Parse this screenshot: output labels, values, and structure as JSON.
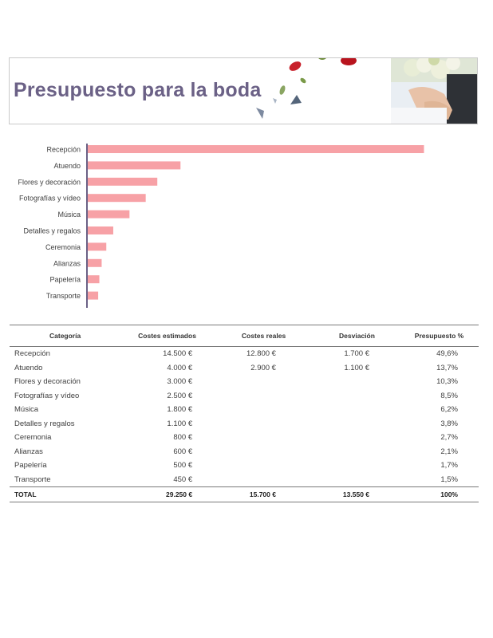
{
  "header": {
    "title": "Presupuesto para la boda"
  },
  "chart_data": {
    "type": "bar",
    "orientation": "horizontal",
    "categories": [
      "Recepción",
      "Atuendo",
      "Flores y decoración",
      "Fotografías y vídeo",
      "Música",
      "Detalles y regalos",
      "Ceremonia",
      "Alianzas",
      "Papelería",
      "Transporte"
    ],
    "values": [
      14500,
      4000,
      3000,
      2500,
      1800,
      1100,
      800,
      600,
      500,
      450
    ],
    "xlim": [
      0,
      15000
    ],
    "grid": false,
    "bar_color": "#f7a1a6",
    "axis_color": "#6b6186"
  },
  "table": {
    "columns": [
      "Categoría",
      "Costes estimados",
      "Costes reales",
      "Desviación",
      "Presupuesto %"
    ],
    "rows": [
      [
        "Recepción",
        "14.500 €",
        "12.800 €",
        "1.700 €",
        "49,6%"
      ],
      [
        "Atuendo",
        "4.000 €",
        "2.900 €",
        "1.100 €",
        "13,7%"
      ],
      [
        "Flores y decoración",
        "3.000 €",
        "",
        "",
        "10,3%"
      ],
      [
        "Fotografías y vídeo",
        "2.500 €",
        "",
        "",
        "8,5%"
      ],
      [
        "Música",
        "1.800 €",
        "",
        "",
        "6,2%"
      ],
      [
        "Detalles y regalos",
        "1.100 €",
        "",
        "",
        "3,8%"
      ],
      [
        "Ceremonia",
        "800 €",
        "",
        "",
        "2,7%"
      ],
      [
        "Alianzas",
        "600 €",
        "",
        "",
        "2,1%"
      ],
      [
        "Papelería",
        "500 €",
        "",
        "",
        "1,7%"
      ],
      [
        "Transporte",
        "450 €",
        "",
        "",
        "1,5%"
      ]
    ],
    "total": [
      "TOTAL",
      "29.250 €",
      "15.700 €",
      "13.550 €",
      "100%"
    ]
  }
}
